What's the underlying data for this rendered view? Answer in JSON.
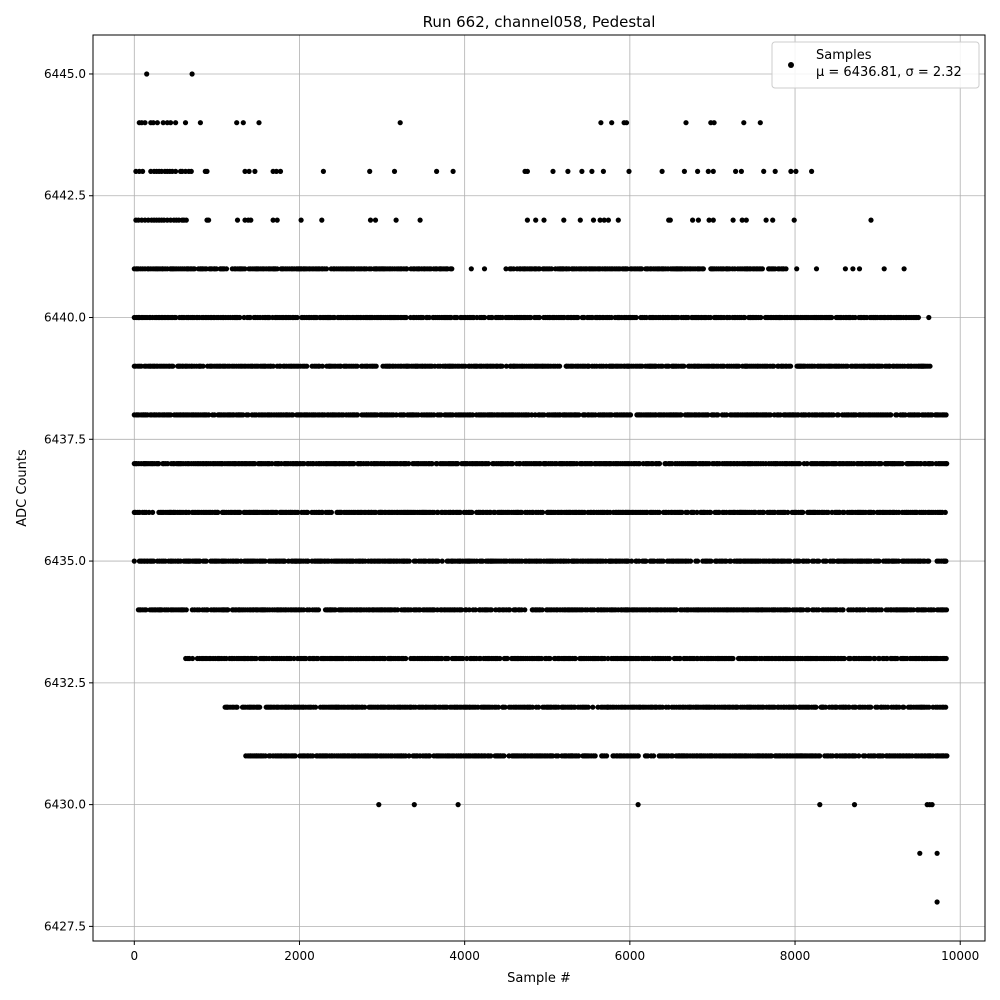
{
  "chart_data": {
    "type": "scatter",
    "title": "Run 662, channel058, Pedestal",
    "xlabel": "Sample #",
    "ylabel": "ADC Counts",
    "xlim": [
      -500,
      10300
    ],
    "ylim": [
      6427.2,
      6445.8
    ],
    "x_ticks": [
      0,
      2000,
      4000,
      6000,
      8000,
      10000
    ],
    "x_tick_labels": [
      "0",
      "2000",
      "4000",
      "6000",
      "8000",
      "10000"
    ],
    "y_ticks": [
      6427.5,
      6430.0,
      6432.5,
      6435.0,
      6437.5,
      6440.0,
      6442.5,
      6445.0
    ],
    "y_tick_labels": [
      "6427.5",
      "6430.0",
      "6432.5",
      "6435.0",
      "6437.5",
      "6440.0",
      "6442.5",
      "6445.0"
    ],
    "grid": true,
    "legend_position": "top-right",
    "marker_color": "#000000",
    "series": [
      {
        "name": "Samples",
        "stats_label": "μ = 6436.81, σ = 2.32",
        "n_samples": 9850,
        "mean": 6436.81,
        "sigma": 2.32,
        "x_range": [
          0,
          9840
        ],
        "levels": [
          {
            "y": 6445,
            "x": [
              150,
              700
            ]
          },
          {
            "y": 6444,
            "x": [
              60,
              90,
              130,
              200,
              230,
              280,
              350,
              400,
              440,
              500,
              620,
              800,
              1240,
              1320,
              1510,
              3220,
              5650,
              5780,
              5930,
              5960,
              6680,
              6980,
              7020,
              7380,
              7580
            ]
          },
          {
            "y": 6443,
            "x": [
              20,
              60,
              100,
              200,
              240,
              270,
              300,
              330,
              370,
              400,
              430,
              460,
              500,
              560,
              580,
              620,
              660,
              690,
              860,
              880,
              1340,
              1390,
              1460,
              1680,
              1720,
              1770,
              2290,
              2850,
              3150,
              3660,
              3860,
              4730,
              4760,
              5070,
              5250,
              5420,
              5540,
              5680,
              5990,
              6390,
              6660,
              6820,
              6950,
              7010,
              7280,
              7350,
              7620,
              7760,
              7950,
              8010,
              8200
            ]
          },
          {
            "y": 6442,
            "x": [
              20,
              50,
              90,
              130,
              170,
              210,
              240,
              270,
              300,
              330,
              360,
              400,
              440,
              480,
              510,
              540,
              580,
              600,
              630,
              880,
              900,
              1250,
              1340,
              1380,
              1410,
              1680,
              1730,
              2020,
              2270,
              2860,
              2920,
              3170,
              3460,
              4760,
              4860,
              4960,
              5200,
              5400,
              5560,
              5640,
              5690,
              5740,
              5860,
              6470,
              6490,
              6760,
              6830,
              6960,
              7010,
              7250,
              7360,
              7410,
              7650,
              7730,
              7990,
              8920
            ]
          },
          {
            "y": 6441,
            "x": "dense:0-3300,3350-3850,4080,4240,4500-6900,6980-7620,7680-7900,8020,8260,8610,8700,8780,9080,9320"
          },
          {
            "y": 6440,
            "x": "dense:0-9520,9620"
          },
          {
            "y": 6439,
            "x": "dense:0-9640"
          },
          {
            "y": 6438,
            "x": "dense:0-9840"
          },
          {
            "y": 6437,
            "x": "dense:0-9840"
          },
          {
            "y": 6436,
            "x": "dense:0-9840"
          },
          {
            "y": 6435,
            "x": "dense:0-9840"
          },
          {
            "y": 6434,
            "x": "dense:50-9840"
          },
          {
            "y": 6433,
            "x": "dense:600-9840"
          },
          {
            "y": 6432,
            "x": "dense:1100-9840"
          },
          {
            "y": 6431,
            "x": "dense:1350-9840"
          },
          {
            "y": 6430,
            "x": [
              2960,
              3390,
              3920,
              6100,
              8300,
              8720,
              9600,
              9630,
              9660
            ]
          },
          {
            "y": 6429,
            "x": [
              9510,
              9720
            ]
          },
          {
            "y": 6428,
            "x": [
              9720
            ]
          }
        ]
      }
    ]
  }
}
